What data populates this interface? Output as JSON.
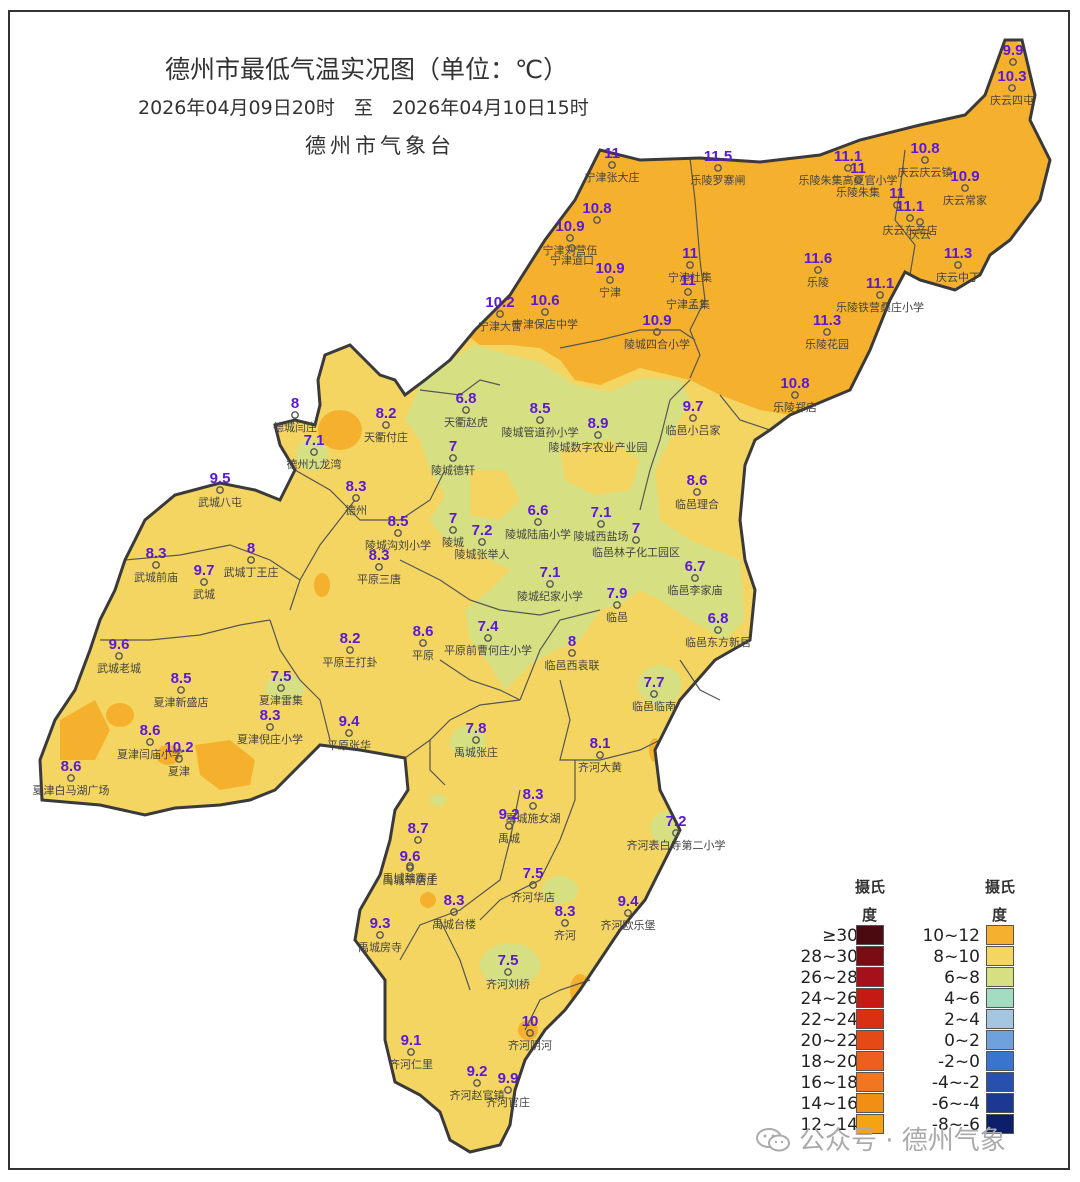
{
  "title": "德州市最低气温实况图（单位：℃）",
  "subtitle": "2026年04月09日20时　至　2026年04月10日15时",
  "agency": "德州市气象台",
  "legend": {
    "heading_left_1": "摄氏",
    "heading_left_2": "度",
    "heading_right_1": "摄氏",
    "heading_right_2": "度",
    "left": [
      {
        "label": "≥30",
        "color": "#4a0a10"
      },
      {
        "label": "28~30",
        "color": "#7a0c14"
      },
      {
        "label": "26~28",
        "color": "#a5101a"
      },
      {
        "label": "24~26",
        "color": "#c41a14"
      },
      {
        "label": "22~24",
        "color": "#d92f12"
      },
      {
        "label": "20~22",
        "color": "#e54a16"
      },
      {
        "label": "18~20",
        "color": "#ed5f1c"
      },
      {
        "label": "16~18",
        "color": "#f07622"
      },
      {
        "label": "14~16",
        "color": "#f18e14"
      },
      {
        "label": "12~14",
        "color": "#f3a314"
      }
    ],
    "right": [
      {
        "label": "10~12",
        "color": "#f5b12e"
      },
      {
        "label": "8~10",
        "color": "#f4d562"
      },
      {
        "label": "6~8",
        "color": "#d7df83"
      },
      {
        "label": "4~6",
        "color": "#a4dcc0"
      },
      {
        "label": "2~4",
        "color": "#a4c6e0"
      },
      {
        "label": "0~2",
        "color": "#6fa2dd"
      },
      {
        "label": "-2~0",
        "color": "#3b74cf"
      },
      {
        "label": "-4~-2",
        "color": "#2751ad"
      },
      {
        "label": "-6~-4",
        "color": "#1c3890"
      },
      {
        "label": "-8~-6",
        "color": "#0e1f6a"
      }
    ]
  },
  "watermark": "公众号 · 德州气象",
  "value_color": "#5a18d8",
  "stations": [
    {
      "value": "9.9",
      "name": ""
    },
    {
      "value": "10.3",
      "name": "庆云四屯"
    },
    {
      "value": "11",
      "name": "宁津张大庄"
    },
    {
      "value": "11.5",
      "name": "乐陵罗寨闸"
    },
    {
      "value": "11.1",
      "name": "乐陵朱集高夏官小学"
    },
    {
      "value": "11",
      "name": "乐陵朱集"
    },
    {
      "value": "10.8",
      "name": "庆云庆云镇"
    },
    {
      "value": "10.9",
      "name": "庆云常家"
    },
    {
      "value": "11",
      "name": ""
    },
    {
      "value": "11.1",
      "name": "庆云东辛店"
    },
    {
      "value": "",
      "name": "庆云"
    },
    {
      "value": "10.8",
      "name": ""
    },
    {
      "value": "10.9",
      "name": "宁津刘营伍"
    },
    {
      "value": "10.9",
      "name": "宁津"
    },
    {
      "value": "",
      "name": "宁津道口"
    },
    {
      "value": "11",
      "name": "宁津杜集"
    },
    {
      "value": "11",
      "name": "宁津孟集"
    },
    {
      "value": "11.6",
      "name": "乐陵"
    },
    {
      "value": "11.3",
      "name": "庆云中丁"
    },
    {
      "value": "11.1",
      "name": "乐陵铁营桑庄小学"
    },
    {
      "value": "11.3",
      "name": "乐陵花园"
    },
    {
      "value": "10.2",
      "name": "宁津大曹"
    },
    {
      "value": "10.6",
      "name": "宁津保店中学"
    },
    {
      "value": "10.9",
      "name": "陵城四合小学"
    },
    {
      "value": "10.8",
      "name": "乐陵郑店"
    },
    {
      "value": "8",
      "name": "德城闫庄"
    },
    {
      "value": "8.2",
      "name": "天衢付庄"
    },
    {
      "value": "7.1",
      "name": "德州九龙湾"
    },
    {
      "value": "6.8",
      "name": "天衢赵虎"
    },
    {
      "value": "8.5",
      "name": "陵城管道孙小学"
    },
    {
      "value": "8.9",
      "name": "陵城数字农业产业园"
    },
    {
      "value": "9.7",
      "name": "临邑小吕家"
    },
    {
      "value": "7",
      "name": "陵城德轩"
    },
    {
      "value": "9.5",
      "name": "武城八屯"
    },
    {
      "value": "8.3",
      "name": "德州"
    },
    {
      "value": "8.6",
      "name": "临邑理合"
    },
    {
      "value": "7",
      "name": "陵城"
    },
    {
      "value": "8.5",
      "name": "陵城沟刘小学"
    },
    {
      "value": "7.2",
      "name": "陵城张举人"
    },
    {
      "value": "6.6",
      "name": "陵城陆庙小学"
    },
    {
      "value": "7.1",
      "name": "陵城西盐场"
    },
    {
      "value": "7",
      "name": "临邑林子化工园区"
    },
    {
      "value": "8.3",
      "name": "武城前庙"
    },
    {
      "value": "8",
      "name": "武城丁王庄"
    },
    {
      "value": "9.7",
      "name": "武城"
    },
    {
      "value": "8.3",
      "name": "平原三唐"
    },
    {
      "value": "6.7",
      "name": "临邑李家庙"
    },
    {
      "value": "7.1",
      "name": "陵城纪家小学"
    },
    {
      "value": "7.9",
      "name": "临邑"
    },
    {
      "value": "6.8",
      "name": "临邑东方新居"
    },
    {
      "value": "9.6",
      "name": "武城老城"
    },
    {
      "value": "8.2",
      "name": "平原王打卦"
    },
    {
      "value": "8.6",
      "name": "平原"
    },
    {
      "value": "7.4",
      "name": "平原前曹何庄小学"
    },
    {
      "value": "8",
      "name": "临邑西袁联"
    },
    {
      "value": "8.5",
      "name": "夏津新盛店"
    },
    {
      "value": "7.5",
      "name": "夏津雷集"
    },
    {
      "value": "7.7",
      "name": "临邑临南"
    },
    {
      "value": "8.3",
      "name": "夏津倪庄小学"
    },
    {
      "value": "8.6",
      "name": "夏津闫庙小学"
    },
    {
      "value": "10.2",
      "name": "夏津"
    },
    {
      "value": "9.4",
      "name": "平原张华"
    },
    {
      "value": "7.8",
      "name": "禹城张庄"
    },
    {
      "value": "8.1",
      "name": "齐河大黄"
    },
    {
      "value": "8.6",
      "name": "夏津白马湖广场"
    },
    {
      "value": "8.3",
      "name": "禹城施女湖"
    },
    {
      "value": "9.2",
      "name": "禹城"
    },
    {
      "value": "8.7",
      "name": ""
    },
    {
      "value": "7.2",
      "name": "齐河表白寺第二小学"
    },
    {
      "value": "9.6",
      "name": "禹城辛店庄"
    },
    {
      "value": "",
      "name": "禹城魏寨子"
    },
    {
      "value": "7.5",
      "name": "齐河华店"
    },
    {
      "value": "8.3",
      "name": "禹城台楼"
    },
    {
      "value": "8.3",
      "name": "齐河"
    },
    {
      "value": "9.4",
      "name": "齐河欧乐堡"
    },
    {
      "value": "9.3",
      "name": "禹城房寺"
    },
    {
      "value": "7.5",
      "name": "齐河刘桥"
    },
    {
      "value": "10",
      "name": "齐河阴河"
    },
    {
      "value": "9.1",
      "name": "齐河仁里"
    },
    {
      "value": "9.2",
      "name": "齐河赵官镇"
    },
    {
      "value": "9.9",
      "name": "齐河官庄"
    }
  ]
}
